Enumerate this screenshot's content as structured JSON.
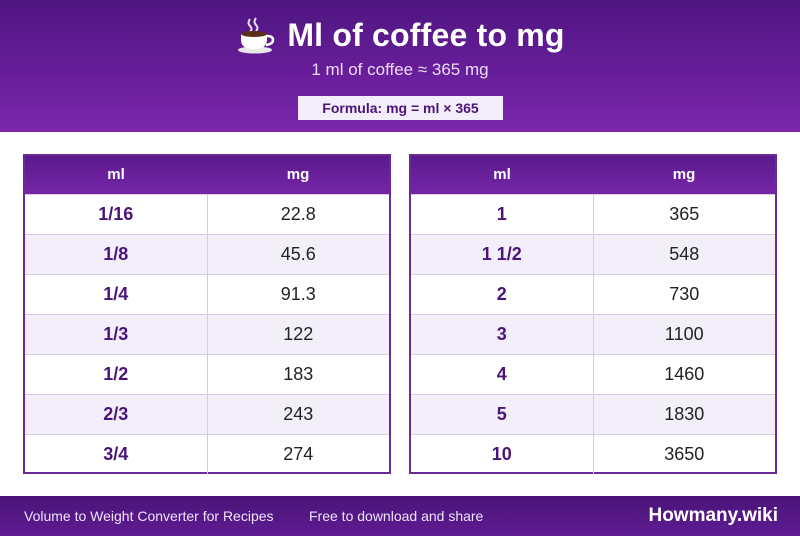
{
  "header": {
    "icon": "coffee-cup-icon",
    "title": "Ml of coffee to mg",
    "subtitle": "1 ml of coffee ≈ 365 mg",
    "formula": "Formula: mg = ml × 365"
  },
  "tables": [
    {
      "headers": [
        "ml",
        "mg"
      ],
      "rows": [
        [
          "1/16",
          "22.8"
        ],
        [
          "1/8",
          "45.6"
        ],
        [
          "1/4",
          "91.3"
        ],
        [
          "1/3",
          "122"
        ],
        [
          "1/2",
          "183"
        ],
        [
          "2/3",
          "243"
        ],
        [
          "3/4",
          "274"
        ]
      ]
    },
    {
      "headers": [
        "ml",
        "mg"
      ],
      "rows": [
        [
          "1",
          "365"
        ],
        [
          "1 1/2",
          "548"
        ],
        [
          "2",
          "730"
        ],
        [
          "3",
          "1100"
        ],
        [
          "4",
          "1460"
        ],
        [
          "5",
          "1830"
        ],
        [
          "10",
          "3650"
        ]
      ]
    }
  ],
  "footer": {
    "left": "Volume to Weight Converter for Recipes",
    "middle": "Free to download and share",
    "brand": "Howmany.wiki"
  },
  "colors": {
    "header": "#5a1a8c",
    "key_text": "#4b1479",
    "alt_row": "#f3effa"
  }
}
